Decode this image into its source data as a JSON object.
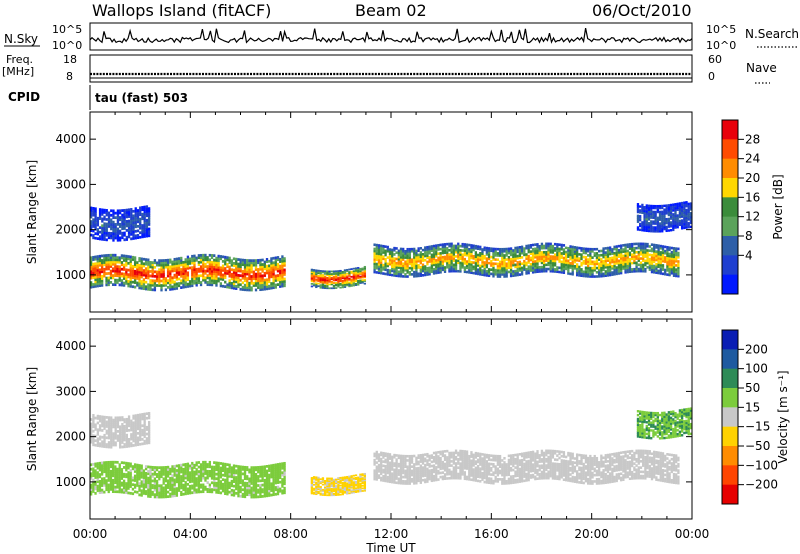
{
  "header": {
    "title_left": "Wallops Island (fitACF)",
    "title_center": "Beam 02",
    "title_right": "06/Oct/2010"
  },
  "noise_panel": {
    "left_label": "N.Sky",
    "left_ticks": [
      "10^5",
      "10^0"
    ],
    "right_ticks": [
      "10^5",
      "10^0"
    ],
    "right_label": "N.Search"
  },
  "freq_panel": {
    "left_label_1": "Freq.",
    "left_label_2": "[MHz]",
    "left_ticks": [
      "18",
      "8"
    ],
    "right_ticks": [
      "60",
      "0"
    ],
    "right_label": "Nave"
  },
  "cpid": {
    "label": "CPID",
    "mode": "tau (fast) 503"
  },
  "power_colorbar": {
    "label": "Power [dB]",
    "ticks": [
      "28",
      "24",
      "20",
      "16",
      "12",
      "8",
      "4"
    ],
    "colors": [
      "#e8000b",
      "#ff4b00",
      "#ff8c00",
      "#ffd700",
      "#3b8c3b",
      "#5ba35b",
      "#2e5fa8",
      "#1f3fcf",
      "#0019ff"
    ]
  },
  "velocity_colorbar": {
    "label": "Velocity [m s⁻¹]",
    "ticks": [
      "200",
      "100",
      "50",
      "15",
      "−15",
      "−50",
      "−100",
      "−200"
    ],
    "colors": [
      "#0a1eb4",
      "#1e5aa0",
      "#2e8b57",
      "#7ccc3c",
      "#c8c8c8",
      "#ffd200",
      "#ff8c00",
      "#ff4500",
      "#e60000"
    ]
  },
  "chart_data": {
    "type": "heatmap",
    "xlabel": "Time UT",
    "ylabel": "Slant Range [km]",
    "x_ticks": [
      "00:00",
      "04:00",
      "08:00",
      "12:00",
      "16:00",
      "20:00",
      "00:00"
    ],
    "x_range_hours": [
      0,
      24
    ],
    "y_ticks": [
      1000,
      2000,
      3000,
      4000
    ],
    "y_range_km": [
      180,
      4600
    ],
    "panels": [
      {
        "name": "Power [dB]",
        "scale_range": [
          0,
          30
        ],
        "scatter_bands": [
          {
            "t_start": 0.0,
            "t_end": 7.8,
            "range_km": [
              700,
              1400
            ],
            "peak": 28
          },
          {
            "t_start": 8.8,
            "t_end": 11.0,
            "range_km": [
              750,
              1150
            ],
            "peak": 28
          },
          {
            "t_start": 11.3,
            "t_end": 23.5,
            "range_km": [
              1000,
              1650
            ],
            "peak": 22
          },
          {
            "t_start": 0.0,
            "t_end": 2.4,
            "range_km": [
              1800,
              2500
            ],
            "peak": 8
          },
          {
            "t_start": 21.8,
            "t_end": 24.0,
            "range_km": [
              2000,
              2600
            ],
            "peak": 8
          }
        ]
      },
      {
        "name": "Velocity [m s⁻¹]",
        "scale_range": [
          -200,
          200
        ],
        "scatter_bands": [
          {
            "t_start": 0.0,
            "t_end": 7.8,
            "range_km": [
              700,
              1400
            ],
            "typical_velocity": 40
          },
          {
            "t_start": 8.8,
            "t_end": 11.0,
            "range_km": [
              750,
              1150
            ],
            "typical_velocity": -30
          },
          {
            "t_start": 11.3,
            "t_end": 23.5,
            "range_km": [
              1000,
              1650
            ],
            "typical_velocity": 0
          },
          {
            "t_start": 0.0,
            "t_end": 2.4,
            "range_km": [
              1800,
              2500
            ],
            "typical_velocity": 0
          },
          {
            "t_start": 21.8,
            "t_end": 24.0,
            "range_km": [
              2000,
              2600
            ],
            "typical_velocity": 60
          }
        ]
      }
    ]
  }
}
